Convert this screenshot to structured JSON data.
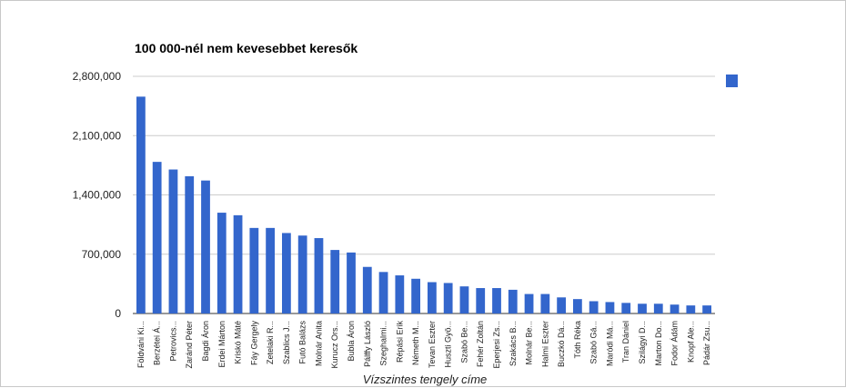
{
  "chart_data": {
    "type": "bar",
    "title": "100 000-nél nem kevesebbet keresők",
    "xlabel": "Vízszintes tengely címe",
    "ylabel": "",
    "ylim": [
      0,
      2800000
    ],
    "yticks": [
      0,
      700000,
      1400000,
      2100000,
      2800000
    ],
    "ytick_labels": [
      "0",
      "700,000",
      "1,400,000",
      "2,100,000",
      "2,800,000"
    ],
    "grid": true,
    "legend_position": "right",
    "color": "#3366cc",
    "categories": [
      "Földváni Ki...",
      "Berzétei Á...",
      "Petrovics...",
      "Zaránd Péter",
      "Bagdi Áron",
      "Erdei Márton",
      "Kriskó Máté",
      "Fáy Gergely",
      "Zetelaki R...",
      "Szablics J...",
      "Futó Balázs",
      "Molnár Anita",
      "Kurucz Ors...",
      "Bubla Áron",
      "Pálffy László",
      "Szeghalmi...",
      "Répási Erik",
      "Németh M...",
      "Tevan Eszter",
      "Huszti Gyö...",
      "Szabó Be...",
      "Fehér Zoltán",
      "Eperjesi Zs...",
      "Szakács B...",
      "Molnár Be...",
      "Halmi Eszter",
      "Buczkó Dá...",
      "Tóth Réka",
      "Szabó Gá...",
      "Maródi Má...",
      "Tran Dániel",
      "Szilágyi D...",
      "Marton Do...",
      "Fodor Ádám",
      "Knopf Ale...",
      "Pádár Zsu..."
    ],
    "values": [
      2560000,
      1790000,
      1700000,
      1620000,
      1570000,
      1190000,
      1160000,
      1010000,
      1010000,
      950000,
      920000,
      890000,
      750000,
      720000,
      550000,
      490000,
      450000,
      410000,
      370000,
      360000,
      320000,
      300000,
      300000,
      280000,
      230000,
      230000,
      190000,
      170000,
      145000,
      135000,
      125000,
      115000,
      115000,
      105000,
      95000,
      95000
    ]
  }
}
